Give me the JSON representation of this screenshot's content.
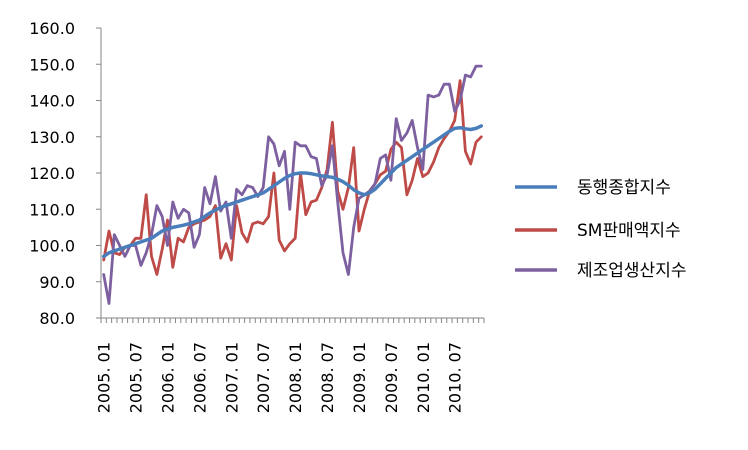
{
  "chart_data": {
    "type": "line",
    "ylim": [
      80,
      160
    ],
    "y_ticks": [
      "80.0",
      "90.0",
      "100.0",
      "110.0",
      "120.0",
      "130.0",
      "140.0",
      "150.0",
      "160.0"
    ],
    "x_tick_labels": [
      "2005. 01",
      "2005. 07",
      "2006. 01",
      "2006. 07",
      "2007. 01",
      "2007. 07",
      "2008. 01",
      "2008. 07",
      "2009. 01",
      "2009. 07",
      "2010. 01",
      "2010. 07"
    ],
    "x": [
      "2005.01",
      "2005.02",
      "2005.03",
      "2005.04",
      "2005.05",
      "2005.06",
      "2005.07",
      "2005.08",
      "2005.09",
      "2005.10",
      "2005.11",
      "2005.12",
      "2006.01",
      "2006.02",
      "2006.03",
      "2006.04",
      "2006.05",
      "2006.06",
      "2006.07",
      "2006.08",
      "2006.09",
      "2006.10",
      "2006.11",
      "2006.12",
      "2007.01",
      "2007.02",
      "2007.03",
      "2007.04",
      "2007.05",
      "2007.06",
      "2007.07",
      "2007.08",
      "2007.09",
      "2007.10",
      "2007.11",
      "2007.12",
      "2008.01",
      "2008.02",
      "2008.03",
      "2008.04",
      "2008.05",
      "2008.06",
      "2008.07",
      "2008.08",
      "2008.09",
      "2008.10",
      "2008.11",
      "2008.12",
      "2009.01",
      "2009.02",
      "2009.03",
      "2009.04",
      "2009.05",
      "2009.06",
      "2009.07",
      "2009.08",
      "2009.09",
      "2009.10",
      "2009.11",
      "2009.12",
      "2010.01",
      "2010.02",
      "2010.03",
      "2010.04",
      "2010.05",
      "2010.06",
      "2010.07",
      "2010.08",
      "2010.09",
      "2010.10",
      "2010.11",
      "2010.12"
    ],
    "series": [
      {
        "name": "동행종합지수",
        "color": "#4a7ebb",
        "values": [
          97,
          98,
          98.5,
          99,
          99.5,
          100,
          100.5,
          101,
          101.5,
          102,
          103,
          104,
          104.5,
          105,
          105.3,
          105.6,
          106,
          106.5,
          107,
          108,
          109,
          109.8,
          110.5,
          111,
          111.5,
          112,
          112.5,
          113,
          113.5,
          114,
          114.5,
          115.5,
          116.5,
          117.5,
          118.5,
          119.3,
          119.8,
          120,
          120,
          119.8,
          119.5,
          119.2,
          119,
          118.8,
          118.3,
          117.6,
          116.6,
          115.4,
          114.5,
          114,
          114.5,
          115.5,
          117,
          118.5,
          120,
          121.5,
          122.5,
          123.5,
          124.5,
          125.5,
          126.5,
          127.5,
          128.5,
          129.5,
          130.5,
          131.5,
          132.3,
          132.5,
          132.2,
          132,
          132.3,
          133
        ]
      },
      {
        "name": "SM판매액지수",
        "color": "#be4b48",
        "values": [
          96,
          104,
          98,
          97.5,
          99.5,
          100,
          102,
          102,
          114,
          97,
          92,
          99,
          107,
          94,
          102,
          101,
          105,
          106,
          106.5,
          107,
          108,
          111,
          96.5,
          100.5,
          96,
          111,
          103.5,
          101,
          106,
          106.5,
          106,
          108,
          120,
          101.5,
          98.5,
          100.5,
          102,
          120,
          108.5,
          112,
          112.5,
          116,
          121,
          134,
          115,
          110,
          116,
          127,
          104,
          110,
          115,
          117,
          119.5,
          120.5,
          126.5,
          128.5,
          127,
          114,
          118,
          124,
          119,
          120,
          123,
          127,
          129.5,
          131.5,
          134.5,
          145.5,
          126,
          122.5,
          128.5,
          130
        ]
      },
      {
        "name": "제조업생산지수",
        "color": "#7d60a0",
        "values": [
          92,
          84,
          103,
          100,
          97,
          100,
          100,
          94.5,
          98,
          103,
          111,
          108,
          100,
          112,
          107.5,
          110,
          109,
          99.5,
          103,
          116,
          111.5,
          119,
          109.5,
          112,
          102,
          115.5,
          114,
          116.5,
          116,
          113.5,
          116,
          130,
          128,
          122,
          126,
          110,
          128.5,
          127.5,
          127.5,
          124.5,
          124,
          116.5,
          119.5,
          127.5,
          112,
          98,
          92,
          105,
          113,
          114,
          115,
          117,
          124,
          125,
          118,
          135,
          129,
          131,
          134.5,
          127,
          121,
          141.5,
          141,
          141.5,
          144.5,
          144.5,
          137,
          140,
          147,
          146.5,
          149.5,
          149.5
        ]
      }
    ],
    "legend_position": "right",
    "grid": false
  }
}
